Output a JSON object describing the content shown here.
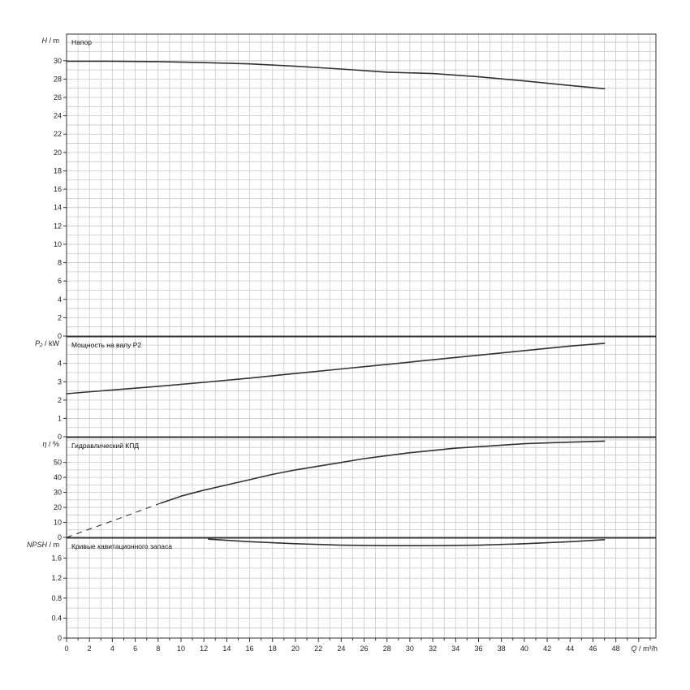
{
  "chart_data": [
    {
      "type": "line",
      "title": "Напор",
      "ylabel_symbol": "H",
      "ylabel_unit": "m",
      "ylim": [
        0,
        32.9
      ],
      "yticks": [
        0,
        2,
        4,
        6,
        8,
        10,
        12,
        14,
        16,
        18,
        20,
        22,
        24,
        26,
        28,
        30
      ],
      "series": [
        {
          "x": [
            0,
            4,
            8,
            12,
            16,
            20,
            24,
            28,
            32,
            36,
            40,
            44,
            47
          ],
          "y": [
            29.95,
            29.95,
            29.9,
            29.8,
            29.65,
            29.4,
            29.1,
            28.75,
            28.6,
            28.25,
            27.8,
            27.3,
            26.95
          ]
        }
      ]
    },
    {
      "type": "line",
      "title": "Мощность на валу P2",
      "ylabel_symbol": "P₂",
      "ylabel_unit": "kW",
      "ylim": [
        0,
        5.45
      ],
      "yticks": [
        0,
        1,
        2,
        3,
        4
      ],
      "series": [
        {
          "x": [
            0,
            4,
            8,
            12,
            16,
            20,
            24,
            28,
            32,
            36,
            40,
            44,
            47
          ],
          "y": [
            2.35,
            2.55,
            2.75,
            2.97,
            3.2,
            3.45,
            3.7,
            3.95,
            4.2,
            4.45,
            4.7,
            4.95,
            5.1
          ]
        }
      ]
    },
    {
      "type": "line",
      "title": "Гидравлический КПД",
      "ylabel_symbol": "η",
      "ylabel_unit": "%",
      "ylim": [
        0,
        66.6
      ],
      "yticks": [
        0,
        10,
        20,
        30,
        40,
        50
      ],
      "series": [
        {
          "x": [
            8.3,
            10,
            12,
            14,
            16,
            18,
            20,
            22,
            24,
            26,
            28,
            30,
            32,
            34,
            36,
            38,
            40,
            42,
            44,
            46,
            47
          ],
          "y": [
            23,
            27.5,
            31.5,
            35,
            38.5,
            42,
            45,
            47.5,
            50,
            52.5,
            54.5,
            56.5,
            58,
            59.5,
            60.5,
            61.5,
            62.5,
            63,
            63.5,
            64,
            64.2
          ]
        },
        {
          "style": "dashed",
          "x": [
            0,
            4,
            8.3
          ],
          "y": [
            0,
            11,
            23
          ]
        }
      ]
    },
    {
      "type": "line",
      "title": "Кривые кавитационного запаса",
      "ylabel_symbol": "NPSH",
      "ylabel_unit": "m",
      "ylim": [
        0,
        2.0
      ],
      "yticks": [
        0,
        0.4,
        0.8,
        1.2,
        1.6
      ],
      "yticks_fmt": [
        "0",
        "0.4",
        "0.8",
        "1.2",
        "1.6"
      ],
      "series": [
        {
          "x": [
            12.4,
            16,
            20,
            24,
            28,
            32,
            36,
            40,
            44,
            47
          ],
          "y": [
            1.98,
            1.93,
            1.89,
            1.86,
            1.85,
            1.85,
            1.86,
            1.89,
            1.93,
            1.97
          ]
        }
      ]
    }
  ],
  "x_axis": {
    "label_symbol": "Q",
    "label_unit": "m³/h",
    "xlim": [
      0,
      51.5
    ],
    "ticks": [
      0,
      2,
      4,
      6,
      8,
      10,
      12,
      14,
      16,
      18,
      20,
      22,
      24,
      26,
      28,
      30,
      32,
      34,
      36,
      38,
      40,
      42,
      44,
      46,
      48
    ]
  },
  "grid": true
}
